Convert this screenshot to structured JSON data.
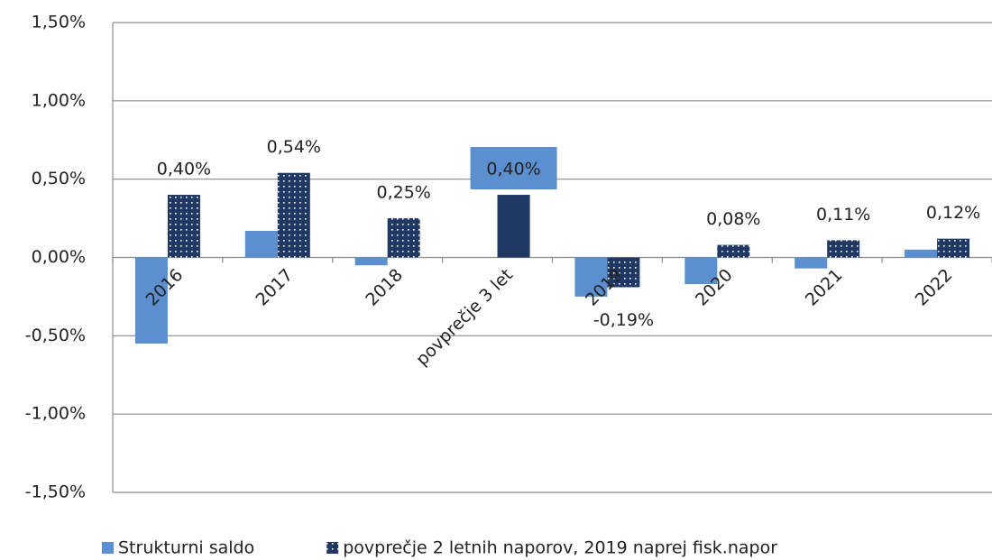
{
  "chart_data": {
    "type": "bar",
    "categories": [
      "2016",
      "2017",
      "2018",
      "povprečje 3 let",
      "2019",
      "2020",
      "2021",
      "2022"
    ],
    "series": [
      {
        "name": "Strukturni saldo",
        "color": "#5b8fd0",
        "pattern": "solid",
        "values": [
          -0.55,
          0.17,
          -0.05,
          null,
          -0.25,
          -0.17,
          -0.07,
          0.05
        ]
      },
      {
        "name": "povprečje 2 letnih naporov, 2019 naprej fisk.napor",
        "color": "#1f3864",
        "pattern": "dots",
        "solid_points": [
          3
        ],
        "values": [
          0.4,
          0.54,
          0.25,
          0.4,
          -0.19,
          0.08,
          0.11,
          0.12
        ],
        "value_labels": [
          "0,40%",
          "0,54%",
          "0,25%",
          "0,40%",
          "-0,19%",
          "0,08%",
          "0,11%",
          "0,12%"
        ],
        "highlight_label_points": [
          3
        ],
        "highlight_label_color": "#5b8fd0"
      }
    ],
    "ylim": [
      -1.5,
      1.5
    ],
    "yticks": [
      {
        "value": -1.5,
        "label": "-1,50%"
      },
      {
        "value": -1.0,
        "label": "-1,00%"
      },
      {
        "value": -0.5,
        "label": "-0,50%"
      },
      {
        "value": 0,
        "label": "0,00%"
      },
      {
        "value": 0.5,
        "label": "0,50%"
      },
      {
        "value": 1.0,
        "label": "1,00%"
      },
      {
        "value": 1.5,
        "label": "1,50%"
      }
    ],
    "grid": true,
    "legend": "bottom"
  }
}
